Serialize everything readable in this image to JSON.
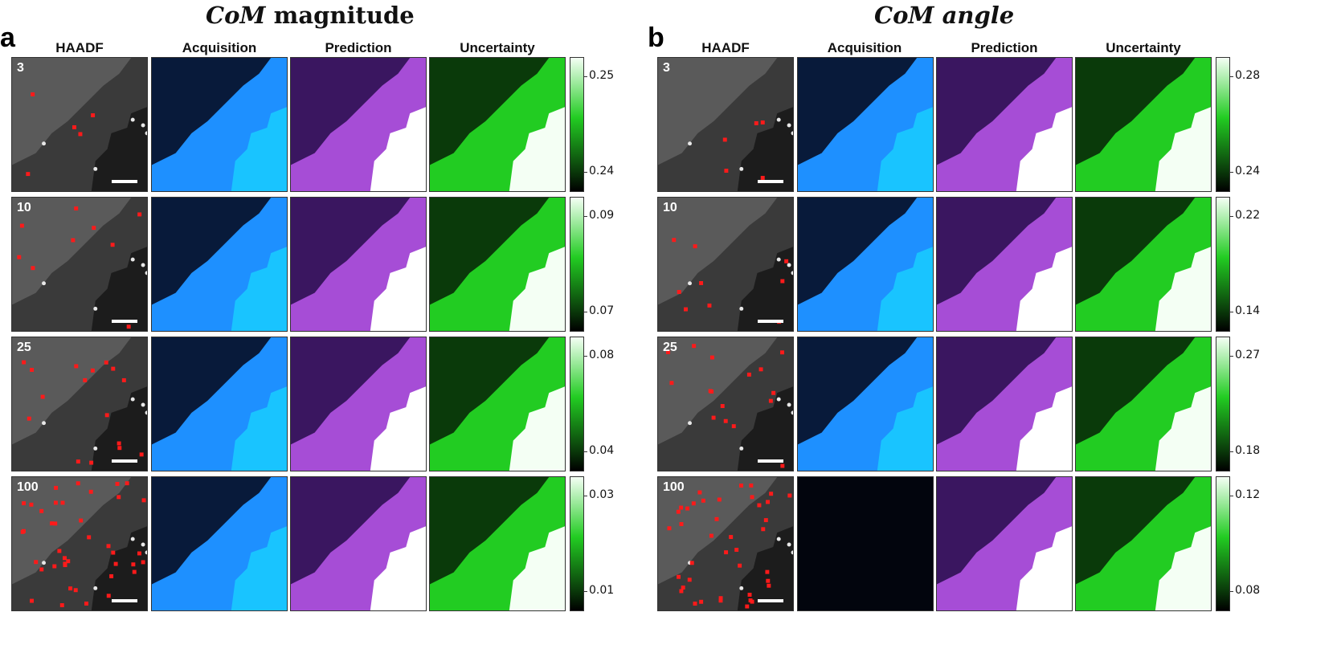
{
  "panels": [
    {
      "letter": "a",
      "title_math": "CoM",
      "title_rest": " magnitude",
      "columns": [
        "HAADF",
        "Acquisition",
        "Prediction",
        "Uncertainty"
      ],
      "rows": [
        {
          "label": "3",
          "ticks": [
            "0.25",
            "0.24"
          ]
        },
        {
          "label": "10",
          "ticks": [
            "0.09",
            "0.07"
          ]
        },
        {
          "label": "25",
          "ticks": [
            "0.08",
            "0.04"
          ]
        },
        {
          "label": "100",
          "ticks": [
            "0.03",
            "0.01"
          ]
        }
      ]
    },
    {
      "letter": "b",
      "title_math": "CoM angle",
      "title_rest": "",
      "columns": [
        "HAADF",
        "Acquisition",
        "Prediction",
        "Uncertainty"
      ],
      "rows": [
        {
          "label": "3",
          "ticks": [
            "0.28",
            "0.24"
          ]
        },
        {
          "label": "10",
          "ticks": [
            "0.22",
            "0.14"
          ]
        },
        {
          "label": "25",
          "ticks": [
            "0.27",
            "0.18"
          ]
        },
        {
          "label": "100",
          "ticks": [
            "0.12",
            "0.08"
          ]
        }
      ]
    }
  ],
  "colors": {
    "haadf": "#4a4a4a",
    "acquisition": "#1e90ff",
    "prediction": "#a64dd6",
    "uncertainty": "#22cc22",
    "sample_markers": "#ff1a1a"
  }
}
